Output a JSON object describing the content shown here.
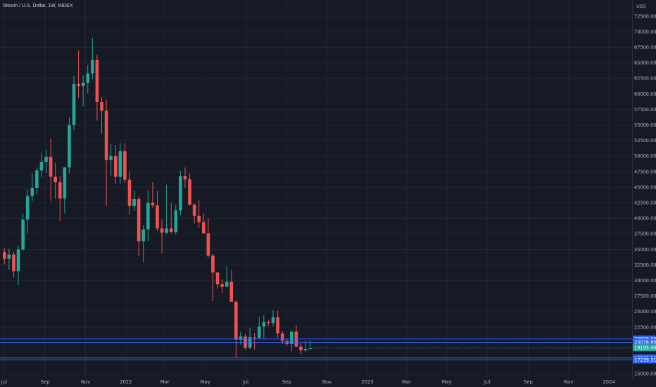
{
  "header": {
    "symbol": "Bitcoin / U.S. Dollar",
    "interval": "1W",
    "exchange": "INDEX"
  },
  "colors": {
    "background": "#161a25",
    "grid": "#222632",
    "up": "#26a69a",
    "down": "#ef5350",
    "level_line": "#2962ff",
    "axis_text": "#b2b5be",
    "last_price": "#26a69a"
  },
  "chart_data": {
    "type": "candlestick",
    "title": "Bitcoin / U.S. Dollar, 1W, INDEX",
    "y_axis": {
      "unit_label": "USD",
      "ylim": [
        14700,
        74200
      ],
      "ticks": [
        "15000.00",
        "17500.00",
        "20000.00",
        "22500.00",
        "25000.00",
        "27500.00",
        "30000.00",
        "32500.00",
        "35000.00",
        "37500.00",
        "40000.00",
        "42500.00",
        "45000.00",
        "47500.00",
        "50000.00",
        "52500.00",
        "55000.00",
        "57500.00",
        "60000.00",
        "62500.00",
        "65000.00",
        "67500.00",
        "70000.00",
        "72500.00"
      ]
    },
    "x_axis": {
      "start_date": "2021-06-28",
      "end_date": "2024-01-20",
      "ticks": [
        {
          "label": "Jul",
          "date": "2021-07-01"
        },
        {
          "label": "Sep",
          "date": "2021-09-01"
        },
        {
          "label": "Nov",
          "date": "2021-11-01"
        },
        {
          "label": "2022",
          "date": "2022-01-01"
        },
        {
          "label": "Mar",
          "date": "2022-03-01"
        },
        {
          "label": "May",
          "date": "2022-05-01"
        },
        {
          "label": "Jul",
          "date": "2022-07-01"
        },
        {
          "label": "Sep",
          "date": "2022-09-01"
        },
        {
          "label": "Nov",
          "date": "2022-11-01"
        },
        {
          "label": "2023",
          "date": "2023-01-01"
        },
        {
          "label": "Mar",
          "date": "2023-03-01"
        },
        {
          "label": "May",
          "date": "2023-05-01"
        },
        {
          "label": "Jul",
          "date": "2023-07-01"
        },
        {
          "label": "Sep",
          "date": "2023-09-01"
        },
        {
          "label": "Nov",
          "date": "2023-11-01"
        },
        {
          "label": "2024",
          "date": "2024-01-01"
        }
      ]
    },
    "candles": [
      {
        "date": "2021-06-28",
        "open": 34600,
        "high": 35200,
        "low": 32600,
        "close": 33500
      },
      {
        "date": "2021-07-05",
        "open": 33500,
        "high": 35100,
        "low": 31700,
        "close": 34200
      },
      {
        "date": "2021-07-12",
        "open": 34200,
        "high": 34600,
        "low": 30500,
        "close": 31500
      },
      {
        "date": "2021-07-19",
        "open": 31500,
        "high": 35600,
        "low": 29300,
        "close": 35000
      },
      {
        "date": "2021-07-26",
        "open": 35000,
        "high": 40800,
        "low": 34800,
        "close": 39800
      },
      {
        "date": "2021-08-02",
        "open": 39800,
        "high": 44700,
        "low": 37600,
        "close": 43600
      },
      {
        "date": "2021-08-09",
        "open": 43600,
        "high": 47300,
        "low": 42800,
        "close": 44900
      },
      {
        "date": "2021-08-16",
        "open": 44900,
        "high": 48100,
        "low": 43900,
        "close": 47700
      },
      {
        "date": "2021-08-23",
        "open": 47700,
        "high": 50500,
        "low": 46600,
        "close": 49100
      },
      {
        "date": "2021-08-30",
        "open": 49100,
        "high": 51000,
        "low": 47300,
        "close": 49900
      },
      {
        "date": "2021-09-06",
        "open": 49900,
        "high": 52800,
        "low": 42800,
        "close": 46700
      },
      {
        "date": "2021-09-13",
        "open": 46700,
        "high": 48900,
        "low": 43100,
        "close": 45800
      },
      {
        "date": "2021-09-20",
        "open": 45800,
        "high": 46800,
        "low": 39600,
        "close": 43200
      },
      {
        "date": "2021-09-27",
        "open": 43200,
        "high": 48300,
        "low": 40800,
        "close": 48200
      },
      {
        "date": "2021-10-04",
        "open": 48200,
        "high": 56300,
        "low": 47200,
        "close": 55000
      },
      {
        "date": "2021-10-11",
        "open": 55000,
        "high": 62900,
        "low": 54200,
        "close": 61600
      },
      {
        "date": "2021-10-18",
        "open": 61600,
        "high": 67000,
        "low": 59400,
        "close": 61300
      },
      {
        "date": "2021-10-25",
        "open": 61300,
        "high": 63000,
        "low": 58000,
        "close": 61800
      },
      {
        "date": "2021-11-01",
        "open": 61800,
        "high": 64700,
        "low": 60100,
        "close": 63300
      },
      {
        "date": "2021-11-08",
        "open": 63300,
        "high": 69000,
        "low": 62400,
        "close": 65500
      },
      {
        "date": "2021-11-15",
        "open": 65500,
        "high": 66300,
        "low": 55700,
        "close": 58700
      },
      {
        "date": "2021-11-22",
        "open": 58700,
        "high": 59500,
        "low": 53600,
        "close": 57300
      },
      {
        "date": "2021-11-29",
        "open": 57300,
        "high": 59100,
        "low": 42000,
        "close": 49400
      },
      {
        "date": "2021-12-06",
        "open": 49400,
        "high": 51900,
        "low": 46800,
        "close": 50000
      },
      {
        "date": "2021-12-13",
        "open": 50000,
        "high": 51800,
        "low": 45600,
        "close": 46700
      },
      {
        "date": "2021-12-20",
        "open": 46700,
        "high": 52100,
        "low": 45600,
        "close": 50800
      },
      {
        "date": "2021-12-27",
        "open": 50800,
        "high": 52000,
        "low": 45700,
        "close": 46200
      },
      {
        "date": "2022-01-03",
        "open": 46200,
        "high": 47500,
        "low": 40600,
        "close": 42000
      },
      {
        "date": "2022-01-10",
        "open": 42000,
        "high": 44500,
        "low": 41200,
        "close": 43100
      },
      {
        "date": "2022-01-17",
        "open": 43100,
        "high": 43500,
        "low": 34000,
        "close": 36300
      },
      {
        "date": "2022-01-24",
        "open": 36300,
        "high": 38900,
        "low": 32900,
        "close": 38200
      },
      {
        "date": "2022-01-31",
        "open": 38200,
        "high": 44500,
        "low": 36300,
        "close": 42500
      },
      {
        "date": "2022-02-07",
        "open": 42500,
        "high": 45800,
        "low": 41700,
        "close": 42100
      },
      {
        "date": "2022-02-14",
        "open": 42100,
        "high": 44400,
        "low": 38000,
        "close": 38400
      },
      {
        "date": "2022-02-21",
        "open": 38400,
        "high": 39800,
        "low": 34400,
        "close": 37700
      },
      {
        "date": "2022-02-28",
        "open": 37700,
        "high": 45400,
        "low": 37500,
        "close": 38400
      },
      {
        "date": "2022-03-07",
        "open": 38400,
        "high": 42500,
        "low": 37600,
        "close": 37800
      },
      {
        "date": "2022-03-14",
        "open": 37800,
        "high": 42200,
        "low": 37400,
        "close": 41300
      },
      {
        "date": "2022-03-21",
        "open": 41300,
        "high": 47700,
        "low": 40500,
        "close": 46800
      },
      {
        "date": "2022-03-28",
        "open": 46800,
        "high": 48200,
        "low": 44900,
        "close": 46300
      },
      {
        "date": "2022-04-04",
        "open": 46300,
        "high": 47200,
        "low": 42100,
        "close": 42200
      },
      {
        "date": "2022-04-11",
        "open": 42200,
        "high": 42400,
        "low": 39200,
        "close": 40400
      },
      {
        "date": "2022-04-18",
        "open": 40400,
        "high": 42900,
        "low": 38500,
        "close": 39400
      },
      {
        "date": "2022-04-25",
        "open": 39400,
        "high": 40800,
        "low": 37700,
        "close": 37600
      },
      {
        "date": "2022-05-02",
        "open": 37600,
        "high": 40000,
        "low": 33700,
        "close": 34000
      },
      {
        "date": "2022-05-09",
        "open": 34000,
        "high": 34300,
        "low": 26700,
        "close": 31300
      },
      {
        "date": "2022-05-16",
        "open": 31300,
        "high": 31200,
        "low": 28700,
        "close": 29400
      },
      {
        "date": "2022-05-23",
        "open": 29400,
        "high": 30200,
        "low": 28000,
        "close": 29000
      },
      {
        "date": "2022-05-30",
        "open": 29000,
        "high": 32300,
        "low": 29400,
        "close": 29800
      },
      {
        "date": "2022-06-06",
        "open": 29800,
        "high": 31700,
        "low": 26600,
        "close": 26600
      },
      {
        "date": "2022-06-13",
        "open": 26600,
        "high": 26900,
        "low": 17600,
        "close": 20500
      },
      {
        "date": "2022-06-20",
        "open": 20500,
        "high": 21800,
        "low": 19700,
        "close": 21000
      },
      {
        "date": "2022-06-27",
        "open": 21000,
        "high": 21500,
        "low": 18900,
        "close": 19200
      },
      {
        "date": "2022-07-04",
        "open": 19200,
        "high": 22400,
        "low": 19000,
        "close": 20900
      },
      {
        "date": "2022-07-11",
        "open": 20900,
        "high": 21600,
        "low": 18900,
        "close": 20800
      },
      {
        "date": "2022-07-18",
        "open": 20800,
        "high": 24200,
        "low": 20700,
        "close": 22600
      },
      {
        "date": "2022-07-25",
        "open": 22600,
        "high": 24400,
        "low": 20700,
        "close": 23300
      },
      {
        "date": "2022-08-01",
        "open": 23300,
        "high": 23600,
        "low": 22700,
        "close": 23200
      },
      {
        "date": "2022-08-08",
        "open": 23200,
        "high": 25200,
        "low": 22700,
        "close": 24100
      },
      {
        "date": "2022-08-15",
        "open": 24100,
        "high": 25200,
        "low": 20800,
        "close": 21500
      },
      {
        "date": "2022-08-22",
        "open": 21500,
        "high": 21900,
        "low": 19800,
        "close": 20300
      },
      {
        "date": "2022-08-29",
        "open": 20300,
        "high": 20600,
        "low": 19500,
        "close": 19800
      },
      {
        "date": "2022-09-05",
        "open": 19800,
        "high": 21800,
        "low": 18600,
        "close": 21800
      },
      {
        "date": "2022-09-12",
        "open": 21800,
        "high": 22800,
        "low": 19300,
        "close": 19400
      },
      {
        "date": "2022-09-19",
        "open": 19400,
        "high": 19900,
        "low": 18200,
        "close": 18800
      },
      {
        "date": "2022-09-26",
        "open": 18800,
        "high": 20300,
        "low": 18500,
        "close": 19000
      },
      {
        "date": "2022-10-03",
        "open": 19000,
        "high": 20400,
        "low": 18900,
        "close": 19100
      }
    ],
    "horizontal_levels": [
      {
        "price": 20609.86,
        "label": "20609.86"
      },
      {
        "price": 20078.8,
        "label": "20078.80"
      },
      {
        "price": 17565.5,
        "label": "17565.50"
      },
      {
        "price": 17239.31,
        "label": "17239.31"
      }
    ],
    "last_price": {
      "price": 19195.4,
      "label": "19195.40"
    }
  }
}
